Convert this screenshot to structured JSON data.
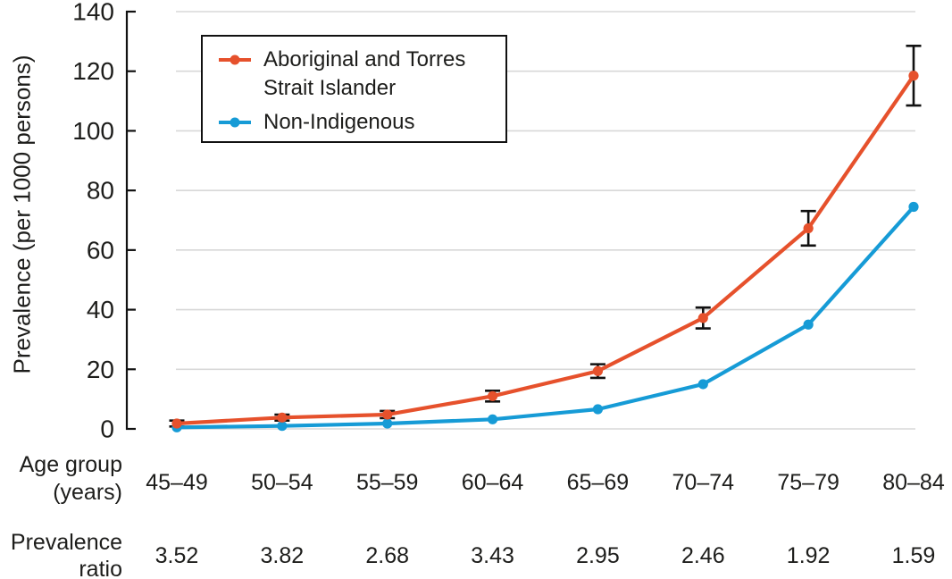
{
  "figure": {
    "background": "#ffffff",
    "text_color": "#1d1d1b",
    "axis_color": "#111111",
    "grid_color": "#d8d8d8"
  },
  "y_axis": {
    "label": "Prevalence (per 1000 persons)"
  },
  "x_axis": {
    "label_line1": "Age group",
    "label_line2": "(years)"
  },
  "ratio_row": {
    "label_line1": "Prevalence",
    "label_line2": "ratio"
  },
  "legend": {
    "entries": [
      {
        "label": "Aboriginal and Torres Strait Islander"
      },
      {
        "label": "Non-Indigenous"
      }
    ]
  },
  "chart_data": {
    "type": "line",
    "title": "",
    "ylabel": "Prevalence (per 1000 persons)",
    "xlabel": "Age group (years)",
    "categories": [
      "45–49",
      "50–54",
      "55–59",
      "60–64",
      "65–69",
      "70–74",
      "75–79",
      "80–84"
    ],
    "series": [
      {
        "name": "Aboriginal and Torres Strait Islander",
        "color": "#e6512c",
        "values": [
          1.8,
          3.8,
          4.8,
          11.0,
          19.4,
          37.2,
          67.3,
          118.5
        ],
        "error": [
          1.0,
          1.0,
          1.2,
          1.8,
          2.3,
          3.5,
          5.8,
          10.0
        ]
      },
      {
        "name": "Non-Indigenous",
        "color": "#169bd6",
        "values": [
          0.5,
          1.0,
          1.8,
          3.2,
          6.6,
          15.0,
          35.0,
          74.5
        ],
        "error": [
          0,
          0,
          0,
          0,
          0,
          0,
          0,
          0
        ]
      }
    ],
    "prevalence_ratio": [
      "3.52",
      "3.82",
      "2.68",
      "3.43",
      "2.95",
      "2.46",
      "1.92",
      "1.59"
    ],
    "ylim": [
      0,
      140
    ],
    "yticks": [
      0,
      20,
      40,
      60,
      80,
      100,
      120,
      140
    ],
    "grid": true,
    "legend_position": "upper-left-inside"
  }
}
